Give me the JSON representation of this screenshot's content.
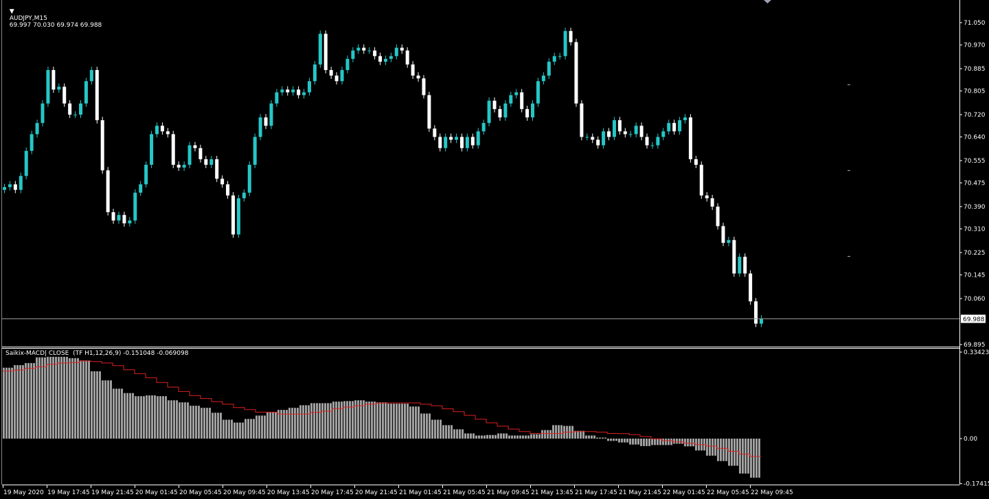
{
  "header": {
    "symbol": "AUDJPY,M15",
    "ohlc": "69.997 70.030 69.974 69.988"
  },
  "indicator": {
    "label": "Saikix-MACD| CLOSE  (TF H1,12,26,9) -0.151048 -0.069098"
  },
  "colors": {
    "background": "#000000",
    "bull_candle": "#26c6c6",
    "bear_candle": "#ffffff",
    "histogram": "#a0a0a0",
    "signal": "#e02020",
    "axis": "#ffffff"
  },
  "chart_data": [
    {
      "type": "candlestick",
      "title": "AUDJPY,M15",
      "ylim": [
        69.895,
        71.05
      ],
      "current_price": "69.988",
      "y_ticks": [
        "71.050",
        "70.970",
        "70.885",
        "70.805",
        "70.720",
        "70.640",
        "70.555",
        "70.475",
        "70.390",
        "70.310",
        "70.225",
        "70.145",
        "70.060",
        "69.895"
      ],
      "close": [
        70.46,
        70.47,
        70.45,
        70.5,
        70.59,
        70.65,
        70.69,
        70.76,
        70.88,
        70.81,
        70.82,
        70.76,
        70.72,
        70.72,
        70.76,
        70.84,
        70.88,
        70.7,
        70.52,
        70.37,
        70.34,
        70.36,
        70.33,
        70.34,
        70.44,
        70.47,
        70.54,
        70.65,
        70.68,
        70.66,
        70.65,
        70.54,
        70.53,
        70.54,
        70.61,
        70.6,
        70.56,
        70.54,
        70.56,
        70.49,
        70.47,
        70.43,
        70.29,
        70.42,
        70.44,
        70.54,
        70.64,
        70.71,
        70.68,
        70.76,
        70.8,
        70.81,
        70.8,
        70.81,
        70.79,
        70.8,
        70.84,
        70.9,
        71.01,
        70.88,
        70.86,
        70.84,
        70.88,
        70.92,
        70.95,
        70.96,
        70.95,
        70.95,
        70.93,
        70.91,
        70.92,
        70.93,
        70.96,
        70.95,
        70.9,
        70.86,
        70.85,
        70.79,
        70.67,
        70.64,
        70.6,
        70.64,
        70.63,
        70.64,
        70.6,
        70.64,
        70.61,
        70.66,
        70.69,
        70.77,
        70.74,
        70.71,
        70.76,
        70.79,
        70.8,
        70.74,
        70.71,
        70.76,
        70.84,
        70.86,
        70.91,
        70.93,
        70.93,
        71.02,
        70.98,
        70.76,
        70.64,
        70.64,
        70.63,
        70.61,
        70.66,
        70.64,
        70.7,
        70.66,
        70.65,
        70.65,
        70.68,
        70.64,
        70.61,
        70.61,
        70.64,
        70.66,
        70.69,
        70.66,
        70.7,
        70.71,
        70.56,
        70.54,
        70.43,
        70.42,
        70.39,
        70.32,
        70.26,
        70.27,
        70.15,
        70.21,
        70.15,
        70.05,
        69.97,
        69.988
      ],
      "x_ticks": [
        "19 May 2020",
        "19 May 17:45",
        "19 May 21:45",
        "20 May 01:45",
        "20 May 05:45",
        "20 May 09:45",
        "20 May 13:45",
        "20 May 17:45",
        "20 May 21:45",
        "21 May 01:45",
        "21 May 05:45",
        "21 May 09:45",
        "21 May 13:45",
        "21 May 17:45",
        "21 May 21:45",
        "22 May 01:45",
        "22 May 05:45",
        "22 May 09:45"
      ]
    },
    {
      "type": "bar",
      "title": "Saikix-MACD| CLOSE  (TF H1,12,26,9)",
      "ylim": [
        -0.174151,
        0.334236
      ],
      "y_ticks": [
        "0.334236",
        "0.00",
        "-0.174151"
      ],
      "macd_hourly": [
        0.274,
        0.284,
        0.292,
        0.314,
        0.316,
        0.316,
        0.311,
        0.302,
        0.26,
        0.225,
        0.193,
        0.176,
        0.164,
        0.167,
        0.164,
        0.148,
        0.14,
        0.127,
        0.119,
        0.1,
        0.073,
        0.062,
        0.076,
        0.089,
        0.102,
        0.111,
        0.119,
        0.129,
        0.137,
        0.137,
        0.143,
        0.145,
        0.148,
        0.143,
        0.14,
        0.135,
        0.135,
        0.124,
        0.097,
        0.073,
        0.052,
        0.036,
        0.02,
        0.012,
        0.014,
        0.02,
        0.012,
        0.012,
        0.017,
        0.033,
        0.052,
        0.049,
        0.03,
        0.012,
        0.004,
        -0.009,
        -0.015,
        -0.023,
        -0.029,
        -0.025,
        -0.025,
        -0.02,
        -0.03,
        -0.046,
        -0.066,
        -0.087,
        -0.105,
        -0.135,
        -0.151048
      ],
      "signal_hourly": [
        0.261,
        0.265,
        0.272,
        0.278,
        0.287,
        0.292,
        0.294,
        0.3,
        0.298,
        0.292,
        0.282,
        0.266,
        0.251,
        0.235,
        0.217,
        0.199,
        0.182,
        0.166,
        0.155,
        0.143,
        0.133,
        0.12,
        0.112,
        0.102,
        0.102,
        0.095,
        0.095,
        0.095,
        0.101,
        0.106,
        0.116,
        0.122,
        0.127,
        0.133,
        0.137,
        0.138,
        0.138,
        0.138,
        0.133,
        0.127,
        0.115,
        0.104,
        0.09,
        0.075,
        0.061,
        0.048,
        0.037,
        0.027,
        0.02,
        0.02,
        0.02,
        0.025,
        0.027,
        0.027,
        0.025,
        0.02,
        0.019,
        0.015,
        0.008,
        -0.001,
        -0.008,
        -0.013,
        -0.018,
        -0.023,
        -0.029,
        -0.038,
        -0.049,
        -0.06,
        -0.069098
      ]
    }
  ]
}
